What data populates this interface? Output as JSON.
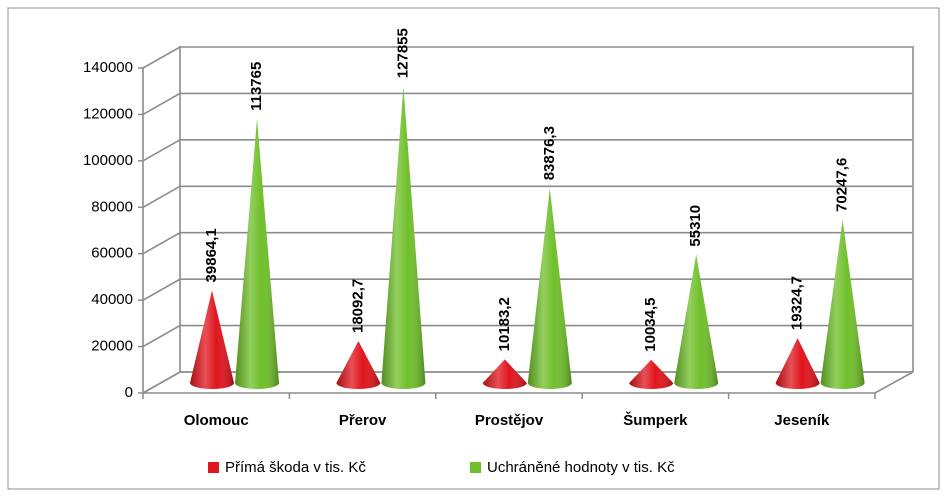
{
  "chart_data": {
    "type": "cone",
    "categories": [
      "Olomouc",
      "Přerov",
      "Prostějov",
      "Šumperk",
      "Jeseník"
    ],
    "series": [
      {
        "name": "Přímá škoda v tis. Kč",
        "color": "#e0151d",
        "values": [
          39864.1,
          18092.7,
          10183.2,
          10034.5,
          19324.7
        ],
        "value_labels": [
          "39864,1",
          "18092,7",
          "10183,2",
          "10034,5",
          "19324,7"
        ]
      },
      {
        "name": "Uchráněné hodnoty v tis. Kč",
        "color": "#6fbf2a",
        "values": [
          113765,
          127855,
          83876.3,
          55310,
          70247.6
        ],
        "value_labels": [
          "113765",
          "127855",
          "83876,3",
          "55310",
          "70247,6"
        ]
      }
    ],
    "ylim": [
      0,
      140000
    ],
    "yticks": [
      0,
      20000,
      40000,
      60000,
      80000,
      100000,
      120000,
      140000
    ],
    "grid": true,
    "legend": "bottom"
  }
}
